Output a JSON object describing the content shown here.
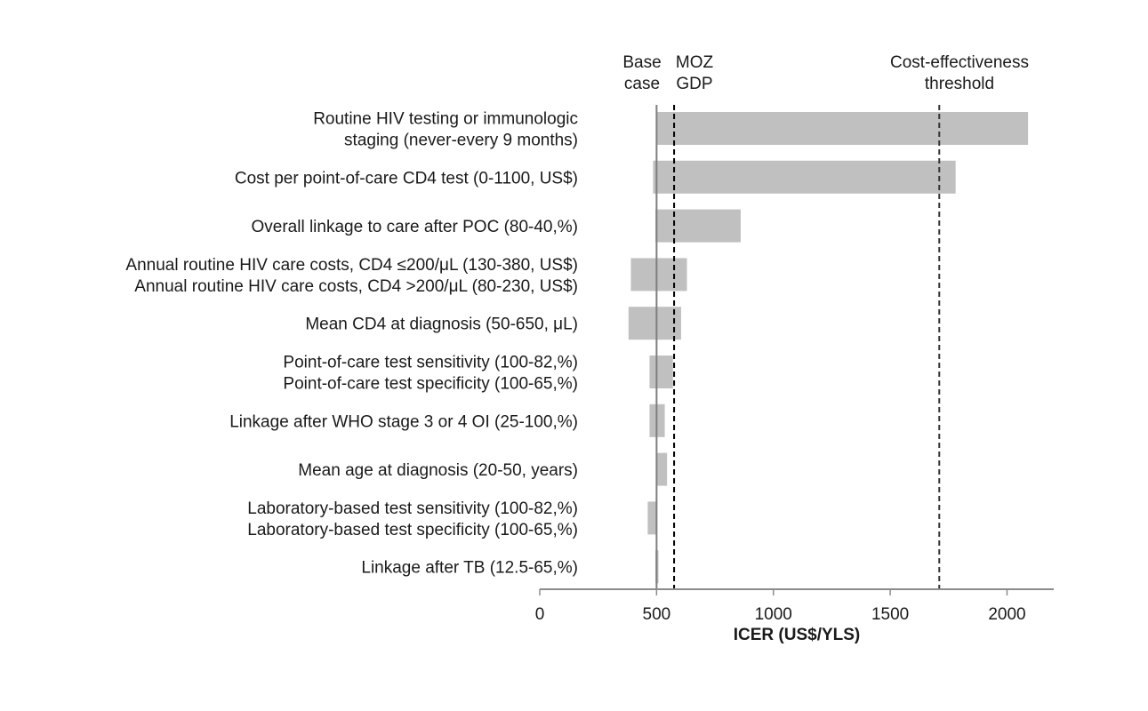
{
  "chart_data": {
    "type": "bar",
    "orientation": "horizontal",
    "xlabel": "ICER (US$/YLS)",
    "xlim": [
      0,
      2200
    ],
    "xticks": [
      0,
      500,
      1000,
      1500,
      2000
    ],
    "base_case": 500,
    "reference_lines": [
      {
        "name": "base-case",
        "label_lines": [
          "Base",
          "case"
        ],
        "value": 500,
        "style": "solid",
        "color": "#7f7f7f"
      },
      {
        "name": "moz-gdp",
        "label_lines": [
          "MOZ",
          "GDP"
        ],
        "value": 575,
        "style": "dashed",
        "color": "#000000"
      },
      {
        "name": "cost-effectiveness-threshold",
        "label_lines": [
          "Cost-effectiveness",
          "threshold"
        ],
        "value": 1710,
        "style": "dashed",
        "color": "#333333"
      }
    ],
    "bar_color": "#c0c0c0",
    "bars": [
      {
        "label_lines": [
          "Routine HIV testing or immunologic",
          "staging (never-every 9 months)"
        ],
        "low": 500,
        "high": 2090
      },
      {
        "label_lines": [
          "Cost per point-of-care CD4 test (0-1100, US$)"
        ],
        "low": 485,
        "high": 1780
      },
      {
        "label_lines": [
          "Overall linkage to care after POC (80-40,%)"
        ],
        "low": 495,
        "high": 860
      },
      {
        "label_lines": [
          "Annual routine HIV care costs, CD4 ≤200/μL (130-380, US$)",
          "Annual routine HIV care costs, CD4 >200/μL (80-230, US$)"
        ],
        "low": 390,
        "high": 630
      },
      {
        "label_lines": [
          "Mean CD4 at diagnosis (50-650, μL)"
        ],
        "low": 380,
        "high": 605
      },
      {
        "label_lines": [
          "Point-of-care test sensitivity (100-82,%)",
          "Point-of-care test specificity (100-65,%)"
        ],
        "low": 470,
        "high": 570
      },
      {
        "label_lines": [
          "Linkage after WHO stage 3 or 4 OI (25-100,%)"
        ],
        "low": 470,
        "high": 535
      },
      {
        "label_lines": [
          "Mean age at diagnosis (20-50, years)"
        ],
        "low": 500,
        "high": 545
      },
      {
        "label_lines": [
          "Laboratory-based test sensitivity (100-82,%)",
          "Laboratory-based test specificity (100-65,%)"
        ],
        "low": 462,
        "high": 500
      },
      {
        "label_lines": [
          "Linkage after TB (12.5-65,%)"
        ],
        "low": 495,
        "high": 508
      }
    ]
  }
}
